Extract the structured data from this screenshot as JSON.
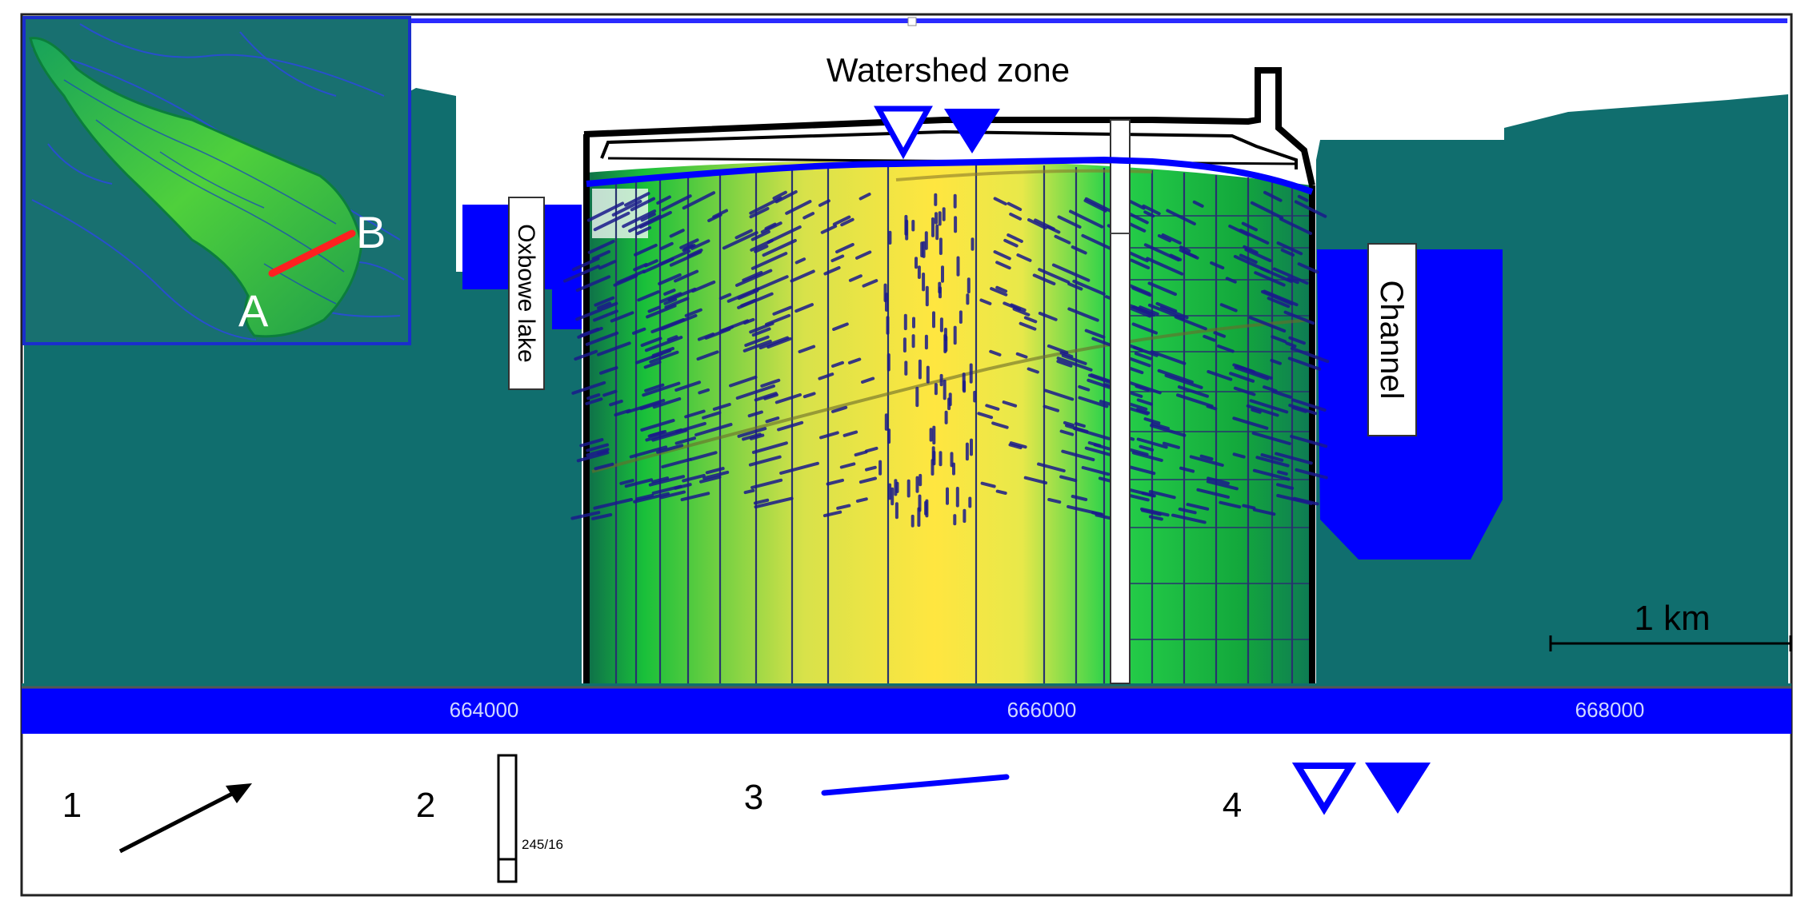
{
  "labels": {
    "watershed_zone": "Watershed zone",
    "oxbow_lake": "Oxbowe lake",
    "channel": "Channel",
    "scale_bar": "1 km",
    "inset_point_a": "A",
    "inset_point_b": "B",
    "well_label": "245/16"
  },
  "axis": {
    "ticks": [
      "664000",
      "666000",
      "668000"
    ]
  },
  "legend": {
    "items": [
      {
        "number": "1",
        "icon": "flow-arrow-icon"
      },
      {
        "number": "2",
        "icon": "well-icon"
      },
      {
        "number": "3",
        "icon": "water-table-line-icon"
      },
      {
        "number": "4",
        "icon": "water-level-triangles-icon"
      }
    ]
  },
  "colors": {
    "terrain": "#106e6e",
    "water": "#0000ff",
    "vector": "#1a1a8c",
    "gradient_green": "#1ec832",
    "gradient_yellow": "#ffe640",
    "scale_red": "#ff2020"
  }
}
